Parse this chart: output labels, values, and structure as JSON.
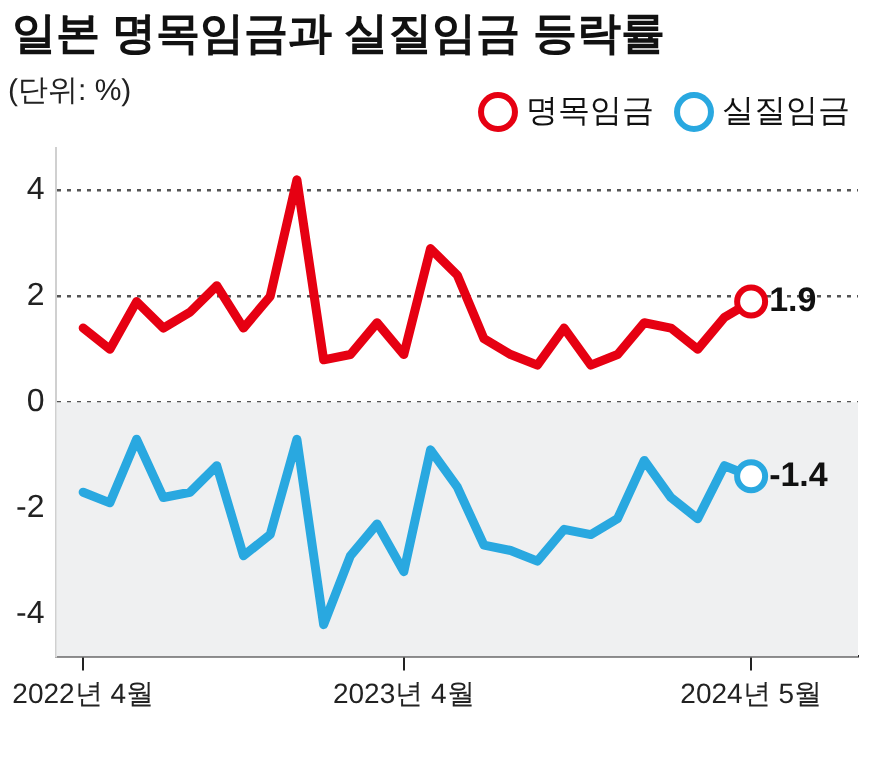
{
  "chart_data": {
    "type": "line",
    "title": "일본 명목임금과 실질임금 등락률",
    "subtitle": "(단위: %)",
    "x": [
      "2022-04",
      "2022-05",
      "2022-06",
      "2022-07",
      "2022-08",
      "2022-09",
      "2022-10",
      "2022-11",
      "2022-12",
      "2023-01",
      "2023-02",
      "2023-03",
      "2023-04",
      "2023-05",
      "2023-06",
      "2023-07",
      "2023-08",
      "2023-09",
      "2023-10",
      "2023-11",
      "2023-12",
      "2024-01",
      "2024-02",
      "2024-03",
      "2024-04",
      "2024-05"
    ],
    "series": [
      {
        "name": "명목임금",
        "color": "#e60012",
        "values": [
          1.4,
          1.0,
          1.9,
          1.4,
          1.7,
          2.2,
          1.4,
          2.0,
          4.2,
          0.8,
          0.9,
          1.5,
          0.9,
          2.9,
          2.4,
          1.2,
          0.9,
          0.7,
          1.4,
          0.7,
          0.9,
          1.5,
          1.4,
          1.0,
          1.6,
          1.9
        ],
        "value_labels": [
          null,
          null,
          null,
          null,
          null,
          null,
          null,
          null,
          null,
          null,
          null,
          null,
          null,
          null,
          null,
          null,
          null,
          null,
          null,
          null,
          null,
          null,
          null,
          null,
          null,
          "1.9"
        ]
      },
      {
        "name": "실질임금",
        "color": "#29a8e0",
        "values": [
          -1.7,
          -1.9,
          -0.7,
          -1.8,
          -1.7,
          -1.2,
          -2.9,
          -2.5,
          -0.7,
          -4.2,
          -2.9,
          -2.3,
          -3.2,
          -0.9,
          -1.6,
          -2.7,
          -2.8,
          -3.0,
          -2.4,
          -2.5,
          -2.2,
          -1.1,
          -1.8,
          -2.2,
          -1.2,
          -1.4
        ],
        "value_labels": [
          null,
          null,
          null,
          null,
          null,
          null,
          null,
          null,
          null,
          null,
          null,
          null,
          null,
          null,
          null,
          null,
          null,
          null,
          null,
          null,
          null,
          null,
          null,
          null,
          null,
          "-1.4"
        ]
      }
    ],
    "xlim": [
      "2022-03",
      "2024-09"
    ],
    "xticks": [
      {
        "value": "2022-04",
        "label": "2022년 4월"
      },
      {
        "value": "2023-04",
        "label": "2023년 4월"
      },
      {
        "value": "2024-05",
        "label": "2024년 5월"
      }
    ],
    "ylim": [
      -4.8,
      4.8
    ],
    "yticks": [
      -4,
      -2,
      0,
      2,
      4
    ],
    "bands": [
      {
        "axis": "y",
        "from": -4.8,
        "to": 0,
        "color": "#eff0f1"
      }
    ],
    "grid": "y",
    "legend": "top right"
  }
}
